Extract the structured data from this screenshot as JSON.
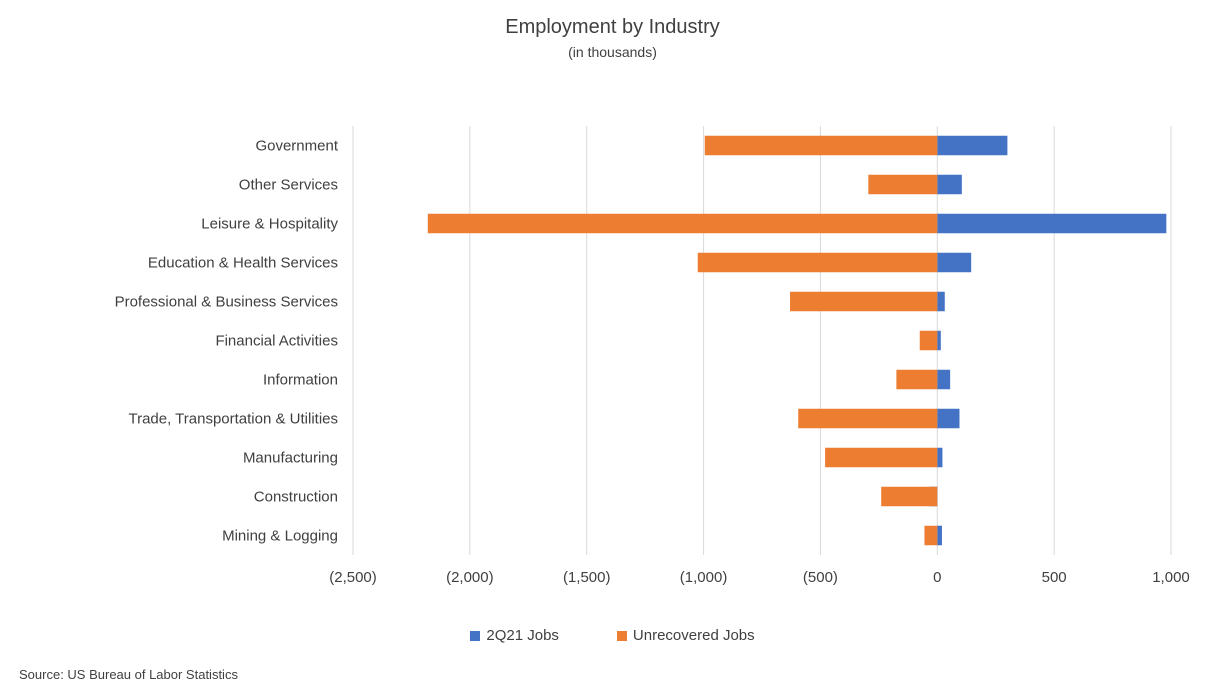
{
  "chart_data": {
    "type": "bar",
    "orientation": "horizontal",
    "stacked": true,
    "title": "Employment by Industry",
    "subtitle": "(in thousands)",
    "categories": [
      "Government",
      "Other Services",
      "Leisure & Hospitality",
      "Education & Health Services",
      "Professional & Business Services",
      "Financial Activities",
      "Information",
      "Trade, Transportation & Utilities",
      "Manufacturing",
      "Construction",
      "Mining & Logging"
    ],
    "series": [
      {
        "name": "2Q21 Jobs",
        "color": "#4472C4",
        "values": [
          300,
          105,
          980,
          145,
          32,
          15,
          55,
          95,
          22,
          -35,
          20
        ]
      },
      {
        "name": "Unrecovered Jobs",
        "color": "#ED7D31",
        "values": [
          -995,
          -295,
          -2180,
          -1025,
          -630,
          -75,
          -175,
          -595,
          -480,
          -240,
          -55
        ]
      }
    ],
    "xlim": [
      -2500,
      1000
    ],
    "xticks": [
      -2500,
      -2000,
      -1500,
      -1000,
      -500,
      0,
      500,
      1000
    ],
    "xtick_labels": [
      "(2,500)",
      "(2,000)",
      "(1,500)",
      "(1,000)",
      "(500)",
      "0",
      "500",
      "1,000"
    ],
    "grid": true,
    "legend_position": "bottom"
  },
  "source": "Source: US Bureau of Labor Statistics"
}
